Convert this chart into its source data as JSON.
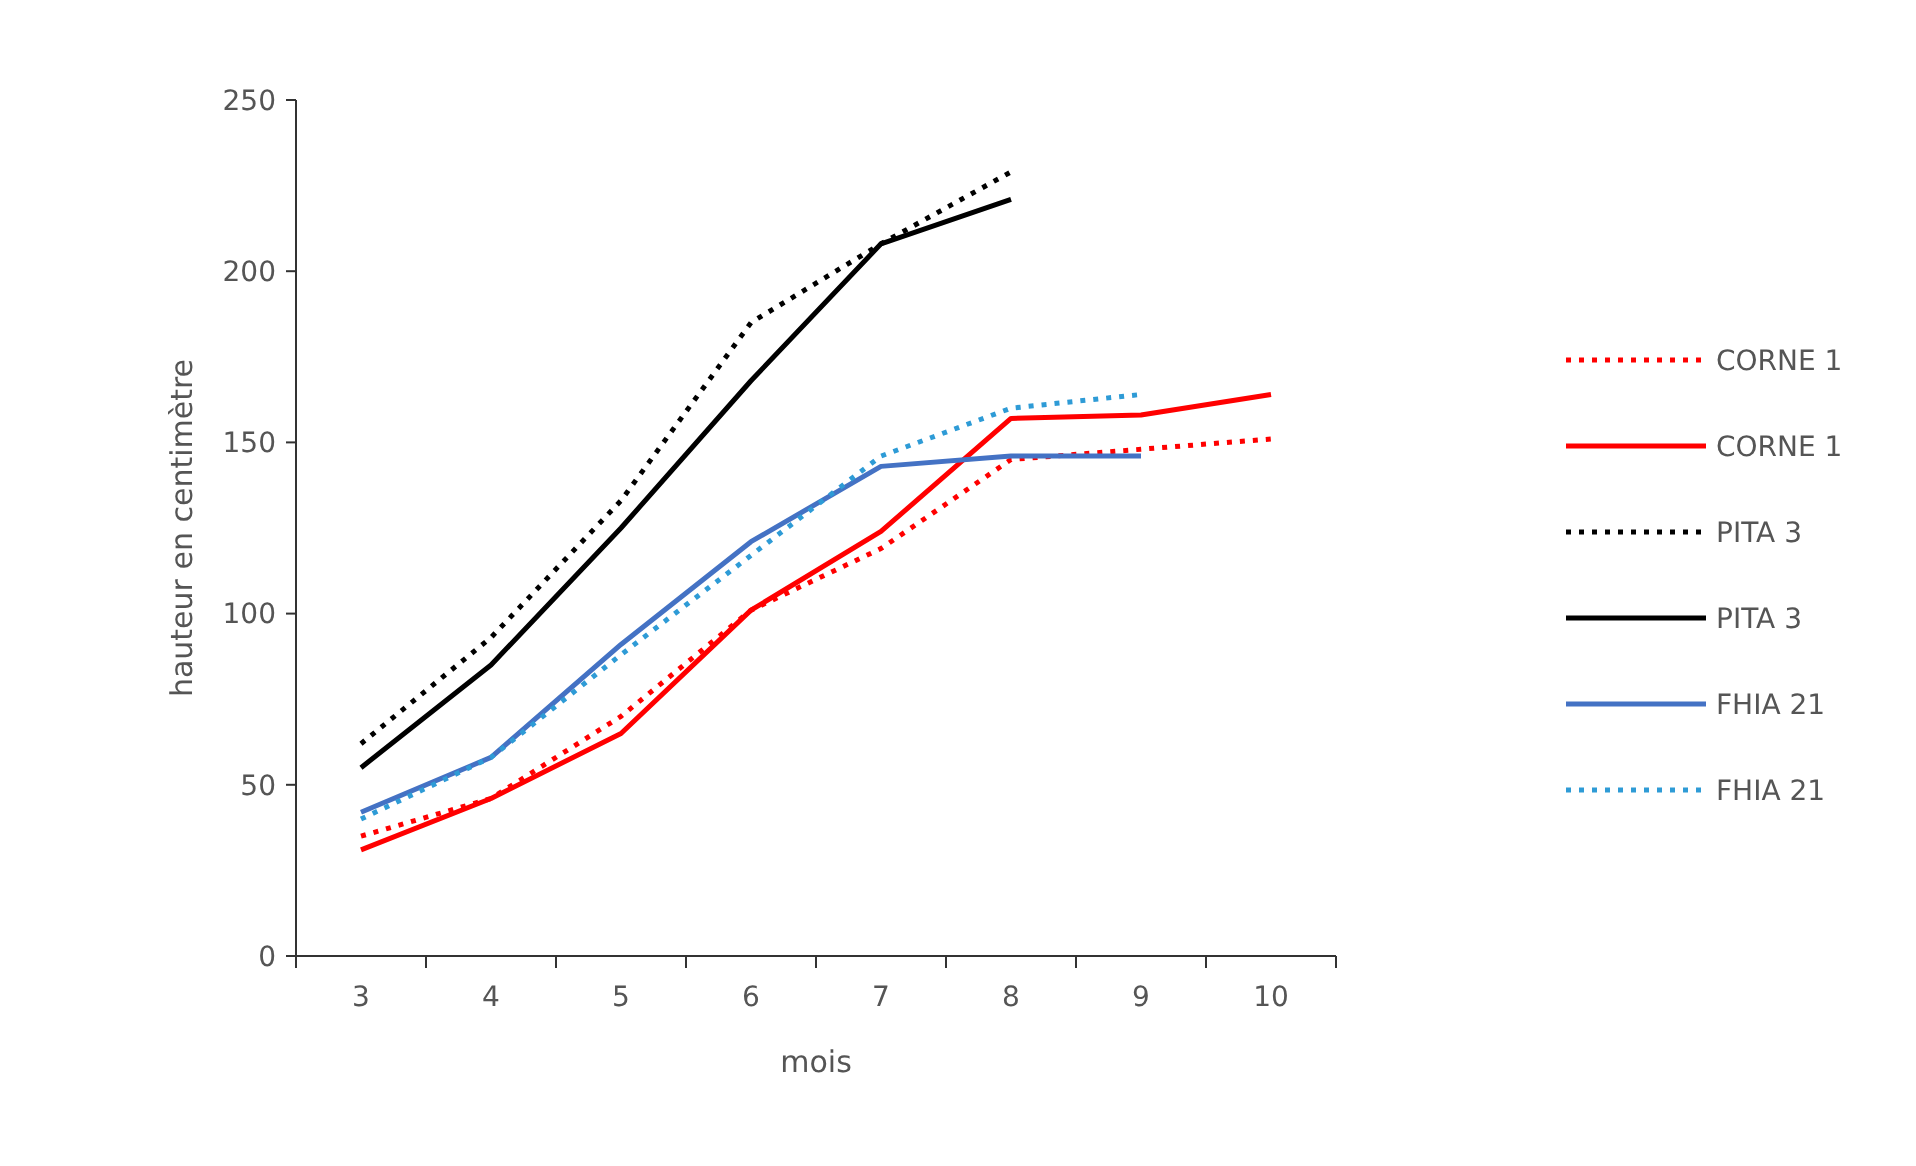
{
  "chart_data": {
    "type": "line",
    "xlabel": "mois",
    "ylabel": "hauteur en centimètre",
    "categories": [
      "3",
      "4",
      "5",
      "6",
      "7",
      "8",
      "9",
      "10"
    ],
    "ylim": [
      0,
      250
    ],
    "yticks": [
      0,
      50,
      100,
      150,
      200,
      250
    ],
    "legend": "right",
    "grid": false,
    "marker": "none",
    "series": [
      {
        "name": "CORNE 1",
        "color": "#ff0000",
        "line_style": "dotted",
        "values": [
          35,
          46,
          70,
          101,
          119,
          145,
          148,
          151
        ]
      },
      {
        "name": "CORNE 1",
        "color": "#ff0000",
        "line_style": "solid",
        "values": [
          31,
          46,
          65,
          101,
          124,
          157,
          158,
          164
        ]
      },
      {
        "name": "PITA 3",
        "color": "#000000",
        "line_style": "dotted",
        "values": [
          62,
          93,
          133,
          185,
          208,
          229,
          null,
          null
        ]
      },
      {
        "name": "PITA 3",
        "color": "#000000",
        "line_style": "solid",
        "values": [
          55,
          85,
          125,
          168,
          208,
          221,
          null,
          null
        ]
      },
      {
        "name": "FHIA 21",
        "color": "#4472c4",
        "line_style": "solid",
        "values": [
          42,
          58,
          91,
          121,
          143,
          146,
          146,
          null
        ]
      },
      {
        "name": "FHIA 21",
        "color": "#2e9bd6",
        "line_style": "dotted",
        "values": [
          40,
          58,
          88,
          117,
          146,
          160,
          164,
          null
        ]
      }
    ]
  }
}
